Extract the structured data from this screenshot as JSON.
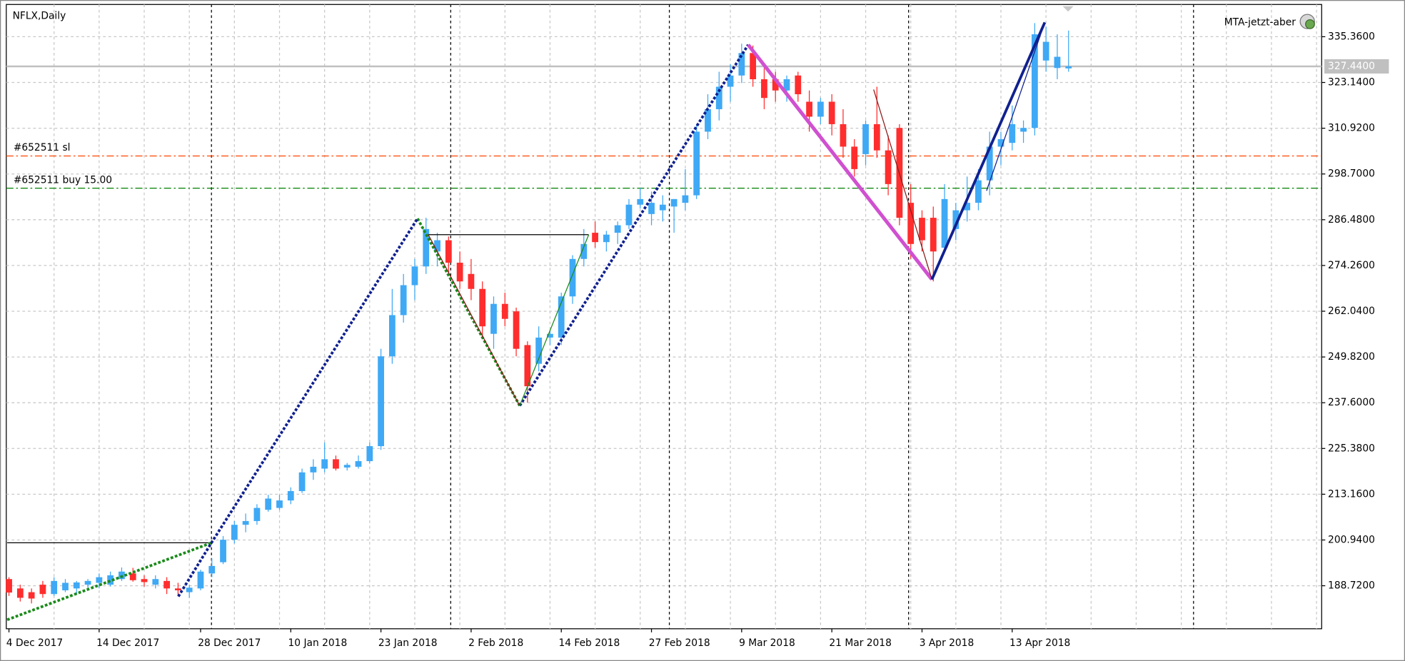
{
  "chart_data": {
    "type": "candlestick",
    "title": "NFLX,Daily",
    "indicator": "MTA-jetzt-aber",
    "up_color": "#3fa9f5",
    "down_color": "#ff2d2d",
    "grid": true,
    "categories": [
      "4 Dec 2017",
      null,
      null,
      null,
      null,
      null,
      null,
      null,
      "14 Dec 2017",
      null,
      null,
      null,
      null,
      null,
      null,
      null,
      null,
      "28 Dec 2017",
      null,
      null,
      null,
      null,
      null,
      null,
      null,
      "10 Jan 2018",
      null,
      null,
      null,
      null,
      null,
      null,
      null,
      "23 Jan 2018",
      null,
      null,
      null,
      null,
      null,
      null,
      null,
      "2 Feb 2018",
      null,
      null,
      null,
      null,
      null,
      null,
      null,
      "14 Feb 2018",
      null,
      null,
      null,
      null,
      null,
      null,
      null,
      "27 Feb 2018",
      null,
      null,
      null,
      null,
      null,
      null,
      null,
      "9 Mar 2018",
      null,
      null,
      null,
      null,
      null,
      null,
      null,
      "21 Mar 2018",
      null,
      null,
      null,
      null,
      null,
      null,
      null,
      "3 Apr 2018",
      null,
      null,
      null,
      null,
      null,
      null,
      null,
      "13 Apr 2018",
      null,
      null,
      null,
      null,
      null
    ],
    "open": [
      190.5,
      188,
      187,
      189,
      186.5,
      187.5,
      188,
      189,
      189.5,
      189,
      190.5,
      192,
      190.5,
      189,
      190,
      188,
      187,
      188,
      192,
      195,
      201,
      205,
      206,
      209,
      209.5,
      211.5,
      214,
      219,
      220,
      222.5,
      220.3,
      220.5,
      222,
      226,
      250,
      261,
      269,
      274,
      278,
      281,
      275,
      272,
      268,
      256,
      264,
      262,
      253,
      248,
      255,
      255,
      266,
      276,
      283,
      280.5,
      283,
      285,
      290.5,
      288,
      289,
      290,
      291,
      293,
      310,
      316,
      322,
      325,
      331,
      324,
      324,
      321,
      325,
      318,
      314,
      318,
      312,
      306,
      304,
      312,
      305,
      311,
      291,
      287,
      287,
      279,
      284,
      289,
      291,
      297,
      306,
      307,
      310,
      311,
      329,
      327,
      326.9
    ],
    "high": [
      191,
      189,
      188,
      190,
      191,
      190.5,
      190,
      190.5,
      192,
      192.5,
      193.6,
      193.5,
      191.5,
      191.5,
      191,
      189.5,
      189,
      193,
      196,
      202,
      206,
      208,
      210.5,
      213,
      213,
      215,
      220,
      222.5,
      227,
      223.5,
      221.5,
      223.5,
      227,
      252,
      268,
      272,
      276,
      287,
      283,
      282,
      278,
      276,
      270,
      266,
      267,
      263,
      254,
      258,
      257,
      267,
      277,
      284,
      286,
      283.5,
      286,
      292,
      295,
      294,
      293,
      292,
      300,
      312,
      320,
      326,
      328,
      333.5,
      333,
      327,
      326,
      325,
      326,
      321,
      319,
      320,
      316,
      308,
      313,
      322,
      309,
      312,
      296,
      289,
      290,
      296,
      291,
      298,
      300,
      310,
      310,
      317,
      313,
      339,
      338,
      336,
      337
    ],
    "low": [
      186,
      184.5,
      184,
      185.5,
      186,
      187,
      186.5,
      188,
      188,
      188.5,
      190,
      189.8,
      188.5,
      188,
      186.5,
      186,
      185.5,
      187.5,
      191,
      194.5,
      200,
      203,
      205,
      208.5,
      209,
      210.5,
      213.5,
      217,
      219,
      219.5,
      219.5,
      220,
      221.5,
      225,
      248,
      259,
      265,
      272,
      274,
      272,
      268,
      265,
      255,
      252,
      258,
      250,
      237.6,
      246,
      253,
      253,
      264,
      274,
      279,
      278,
      280,
      284,
      289.5,
      285,
      286,
      283,
      289,
      292,
      308,
      313,
      318,
      323,
      322,
      316,
      318,
      318,
      318,
      310,
      312,
      309,
      303,
      298,
      301,
      303,
      293,
      285,
      276,
      278,
      270,
      278,
      281,
      286,
      289,
      293,
      301,
      305,
      307,
      309,
      326,
      324,
      326
    ],
    "close": [
      186.9,
      185.5,
      185.3,
      186.5,
      190,
      189.5,
      189.6,
      190,
      191,
      191.5,
      192.5,
      190.2,
      189.7,
      190.5,
      188,
      187.5,
      188.2,
      192.5,
      194,
      201,
      205,
      206,
      209.5,
      212,
      211.5,
      214,
      219,
      220.5,
      222.5,
      220,
      221,
      222,
      226,
      250,
      261,
      269,
      274,
      284,
      281,
      275,
      270,
      268,
      258,
      264,
      260,
      252,
      242,
      255,
      256,
      266,
      276,
      280,
      280.5,
      282.5,
      285,
      290.5,
      292,
      291,
      290.5,
      292,
      293,
      310,
      316,
      322,
      325,
      331,
      324,
      319,
      321,
      324,
      320,
      314,
      318,
      312,
      306,
      300,
      312,
      305,
      296,
      287,
      280,
      281,
      278,
      292,
      289,
      291,
      297,
      306,
      308,
      312,
      311,
      336,
      334,
      330,
      327.44
    ],
    "ylim": [
      177.23,
      343.97
    ],
    "yticks": [
      {
        "value": 188.72,
        "label": "188.7200"
      },
      {
        "value": 200.94,
        "label": "200.9400"
      },
      {
        "value": 213.16,
        "label": "213.1600"
      },
      {
        "value": 225.38,
        "label": "225.3800"
      },
      {
        "value": 237.6,
        "label": "237.6000"
      },
      {
        "value": 249.82,
        "label": "249.8200"
      },
      {
        "value": 262.04,
        "label": "262.0400"
      },
      {
        "value": 274.26,
        "label": "274.2600"
      },
      {
        "value": 286.48,
        "label": "286.4800"
      },
      {
        "value": 298.7,
        "label": "298.7000"
      },
      {
        "value": 310.92,
        "label": "310.9200"
      },
      {
        "value": 323.14,
        "label": "323.1400"
      },
      {
        "value": 335.36,
        "label": "335.3600"
      }
    ],
    "bid": {
      "value": 327.44,
      "label": "327.4400"
    },
    "order_lines": [
      {
        "label": "#652511 sl",
        "value": 303.5,
        "color": "#ff4500"
      },
      {
        "label": "#652511 buy 15.00",
        "value": 294.9,
        "color": "#008000"
      }
    ]
  }
}
